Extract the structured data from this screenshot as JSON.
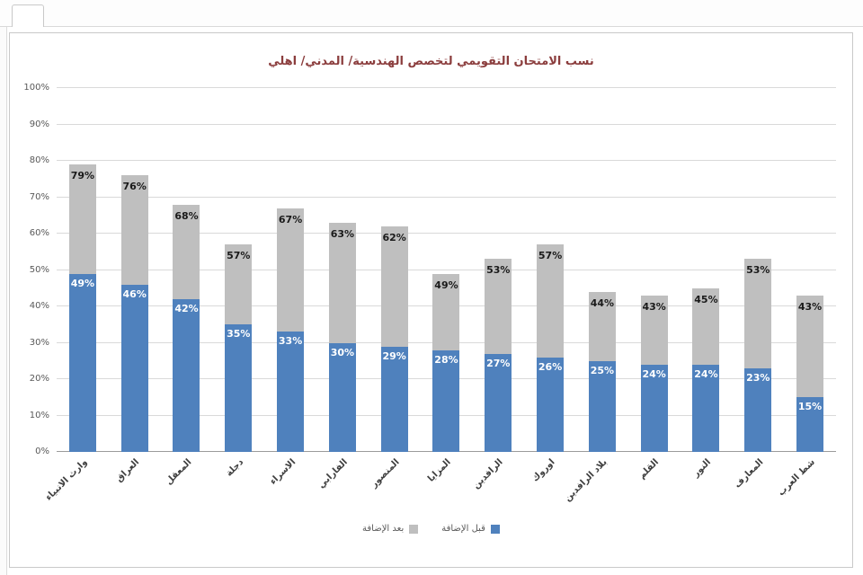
{
  "chart_data": {
    "type": "bar",
    "stacked": true,
    "title": "نسب الامتحان التقويمي لتخصص الهندسية/ المدني/ اهلي",
    "categories": [
      "وارث الانبياء",
      "العراق",
      "المعقل",
      "دجلة",
      "الاسراء",
      "الفارابي",
      "المنصور",
      "المزايا",
      "الرافدين",
      "اوروك",
      "بلاد الرافدين",
      "القلم",
      "النور",
      "المعارف",
      "شط العرب"
    ],
    "series": [
      {
        "name": "قبل الإضافة",
        "color": "#4f81bd",
        "values": [
          49,
          46,
          42,
          35,
          33,
          30,
          29,
          28,
          27,
          26,
          25,
          24,
          24,
          23,
          15
        ]
      },
      {
        "name": "بعد الإضافة",
        "color": "#bfbfbf",
        "totals": [
          79,
          76,
          68,
          57,
          67,
          63,
          62,
          49,
          53,
          57,
          44,
          43,
          45,
          53,
          43
        ]
      }
    ],
    "ylim": [
      0,
      100
    ],
    "yticks": [
      "0%",
      "10%",
      "20%",
      "30%",
      "40%",
      "50%",
      "60%",
      "70%",
      "80%",
      "90%",
      "100%"
    ],
    "grid": "horizontal",
    "legend_position": "bottom",
    "legend": [
      {
        "label": "بعد الإضافة",
        "color": "#bfbfbf"
      },
      {
        "label": "قبل الإضافة",
        "color": "#4f81bd"
      }
    ]
  }
}
